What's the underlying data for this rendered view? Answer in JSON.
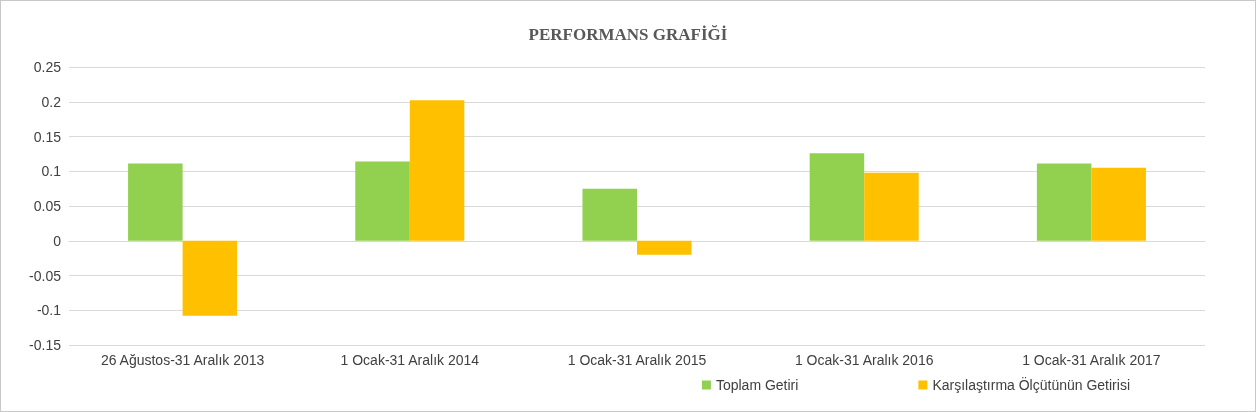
{
  "chart_data": {
    "type": "bar",
    "title": "PERFORMANS GRAFİĞİ",
    "categories": [
      "26 Ağustos-31 Aralık 2013",
      "1 Ocak-31 Aralık 2014",
      "1 Ocak-31 Aralık 2015",
      "1 Ocak-31 Aralık 2016",
      "1 Ocak-31 Aralık 2017"
    ],
    "series": [
      {
        "name": "Toplam Getiri",
        "color": "#92d050",
        "values": [
          0.111,
          0.114,
          0.075,
          0.126,
          0.111
        ]
      },
      {
        "name": "Karşılaştırma Ölçütünün Getirisi",
        "color": "#ffc000",
        "values": [
          -0.108,
          0.202,
          -0.02,
          0.098,
          0.105
        ]
      }
    ],
    "ylim": [
      -0.15,
      0.25
    ],
    "yticks": [
      -0.15,
      -0.1,
      -0.05,
      0,
      0.05,
      0.1,
      0.15,
      0.2,
      0.25
    ],
    "grid": "y",
    "legend": "bottom right"
  }
}
